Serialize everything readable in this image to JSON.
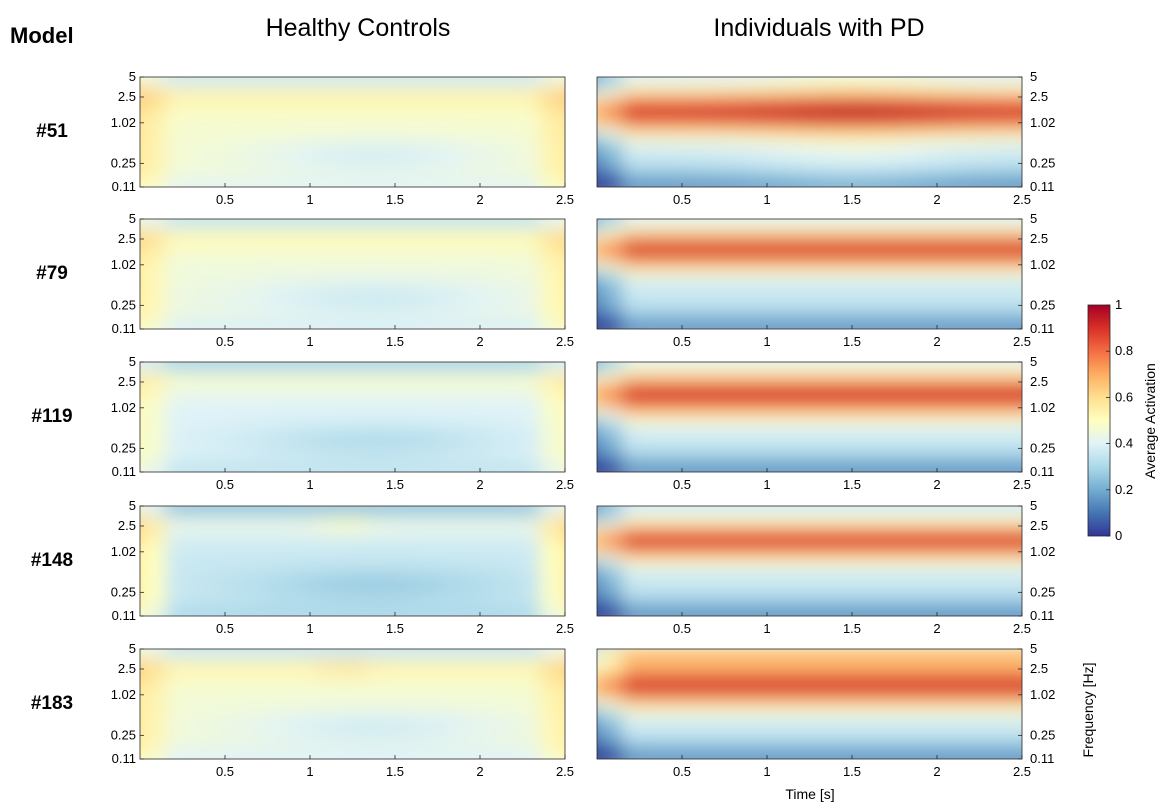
{
  "chart_data": {
    "type": "heatmap",
    "header": "Model",
    "column_titles": [
      "Healthy Controls",
      "Individuals with PD"
    ],
    "models": [
      "#51",
      "#79",
      "#119",
      "#148",
      "#183"
    ],
    "xlabel": "Time [s]",
    "ylabel": "Frequency [Hz]",
    "x_range": [
      0,
      2.5
    ],
    "x_ticks": [
      0.5,
      1,
      1.5,
      2,
      2.5
    ],
    "y_scale": "log",
    "y_range": [
      0.11,
      5
    ],
    "y_ticks": [
      5,
      2.5,
      1.02,
      0.25,
      0.11
    ],
    "y_tick_labels": [
      "5",
      "2.5",
      "1.02",
      "0.25",
      "0.11"
    ],
    "colorbar": {
      "label": "Average Activation",
      "range": [
        0,
        1
      ],
      "ticks": [
        1,
        0.8,
        0.6,
        0.4,
        0.2,
        0
      ],
      "tick_labels": [
        "1",
        "0.8",
        "0.6",
        "0.4",
        "0.2",
        "0"
      ],
      "colormap": "RdYlBu reversed",
      "stops": [
        "#313695",
        "#4575b4",
        "#74add1",
        "#abd9e9",
        "#e0f3f8",
        "#ffffbf",
        "#fee090",
        "#fdae61",
        "#f46d43",
        "#d73027",
        "#a50026"
      ]
    },
    "approx_mean_activation": {
      "healthy_controls": [
        0.45,
        0.43,
        0.38,
        0.35,
        0.44
      ],
      "individuals_with_pd": [
        0.75,
        0.72,
        0.74,
        0.68,
        0.76
      ]
    }
  }
}
